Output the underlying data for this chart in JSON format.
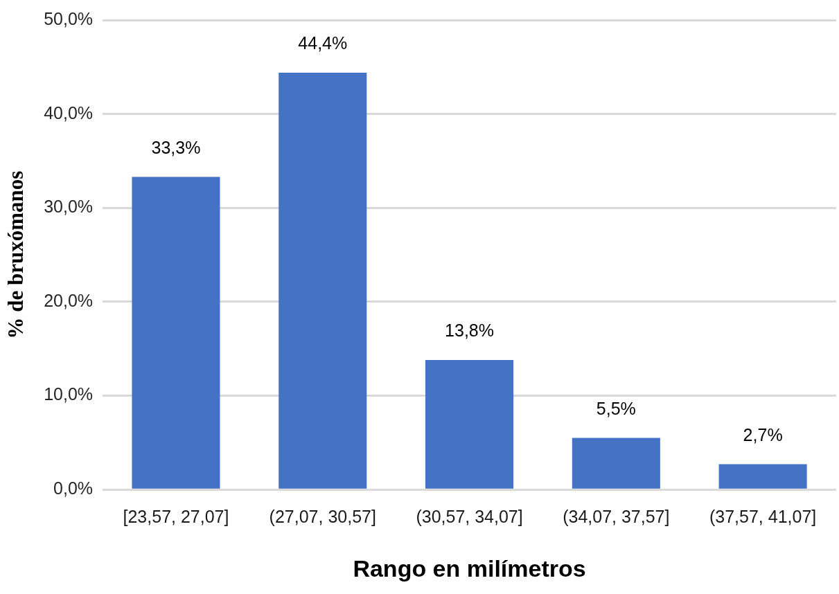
{
  "chart_data": {
    "type": "bar",
    "xlabel": "Rango en milímetros",
    "ylabel": "% de bruxómanos",
    "categories": [
      "[23,57, 27,07]",
      "(27,07, 30,57]",
      "(30,57, 34,07]",
      "(34,07, 37,57]",
      "(37,57, 41,07]"
    ],
    "values": [
      33.3,
      44.4,
      13.8,
      5.5,
      2.7
    ],
    "value_labels": [
      "33,3%",
      "44,4%",
      "13,8%",
      "5,5%",
      "2,7%"
    ],
    "color": "#4472c4",
    "ylim": [
      0,
      50
    ],
    "yticks": [
      {
        "value": 0,
        "label": "0,0%"
      },
      {
        "value": 10,
        "label": "10,0%"
      },
      {
        "value": 20,
        "label": "20,0%"
      },
      {
        "value": 30,
        "label": "30,0%"
      },
      {
        "value": 40,
        "label": "40,0%"
      },
      {
        "value": 50,
        "label": "50,0%"
      }
    ],
    "grid": "y"
  }
}
